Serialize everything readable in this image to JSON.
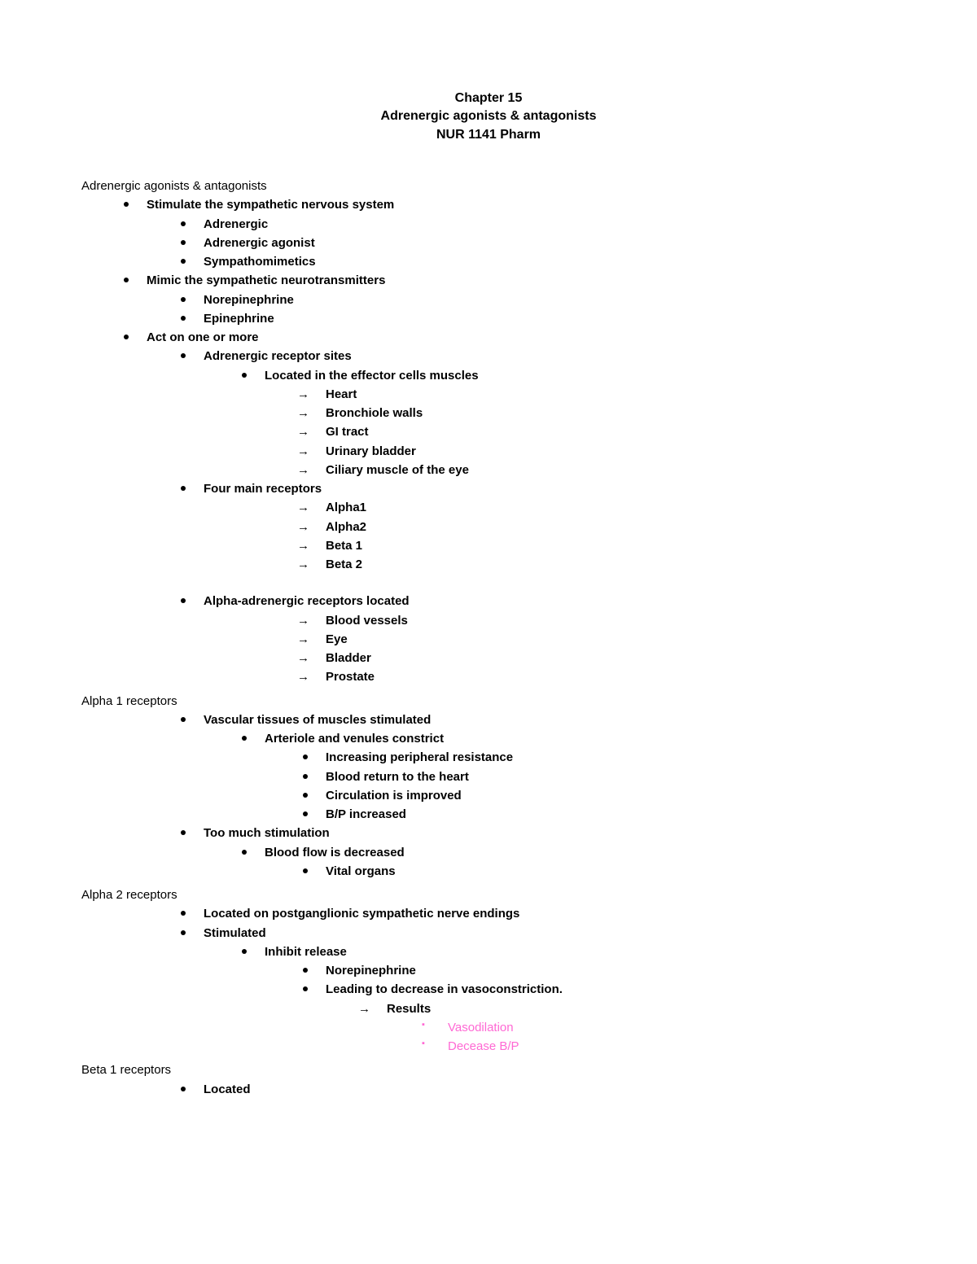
{
  "header": {
    "line1": "Chapter 15",
    "line2": "Adrenergic agonists & antagonists",
    "line3": "NUR 1141 Pharm"
  },
  "sections": {
    "s1_title": "Adrenergic agonists & antagonists",
    "s1a": "Stimulate the sympathetic nervous system",
    "s1a1": "Adrenergic",
    "s1a2": "Adrenergic agonist",
    "s1a3": "Sympathomimetics",
    "s1b": "Mimic the sympathetic neurotransmitters",
    "s1b1": "Norepinephrine",
    "s1b2": "Epinephrine",
    "s1c": "Act on one or more",
    "s1c1": "Adrenergic receptor sites",
    "s1c1a": "Located in the effector cells muscles",
    "s1c1a1": "Heart",
    "s1c1a2": "Bronchiole walls",
    "s1c1a3": "GI tract",
    "s1c1a4": "Urinary bladder",
    "s1c1a5": "Ciliary muscle of the eye",
    "s1c2": "Four main receptors",
    "s1c2a": "Alpha1",
    "s1c2b": "Alpha2",
    "s1c2c": "Beta 1",
    "s1c2d": "Beta 2",
    "s1c3": "Alpha-adrenergic receptors located",
    "s1c3a": "Blood vessels",
    "s1c3b": "Eye",
    "s1c3c": "Bladder",
    "s1c3d": "Prostate",
    "s2_title": "Alpha 1 receptors",
    "s2a": "Vascular tissues of muscles stimulated",
    "s2a1": "Arteriole and venules constrict",
    "s2a1a": "Increasing peripheral resistance",
    "s2a1b": "Blood return to the heart",
    "s2a1c": "Circulation is improved",
    "s2a1d": "B/P increased",
    "s2b": "Too much stimulation",
    "s2b1": "Blood flow is decreased",
    "s2b1a": "Vital organs",
    "s3_title": "Alpha 2 receptors",
    "s3a": "Located on postganglionic sympathetic nerve endings",
    "s3b": "Stimulated",
    "s3b1": "Inhibit release",
    "s3b1a": "Norepinephrine",
    "s3b1b": "Leading to decrease in vasoconstriction.",
    "s3b1b1": "Results",
    "s3b1b1a": "Vasodilation",
    "s3b1b1b": "Decease B/P",
    "s4_title": "Beta 1 receptors",
    "s4a": "Located"
  },
  "colors": {
    "text": "#000000",
    "pink": "#ff69d4",
    "background": "#ffffff"
  },
  "typography": {
    "title_fontsize": 16,
    "body_fontsize": 15,
    "family": "Trebuchet MS"
  }
}
